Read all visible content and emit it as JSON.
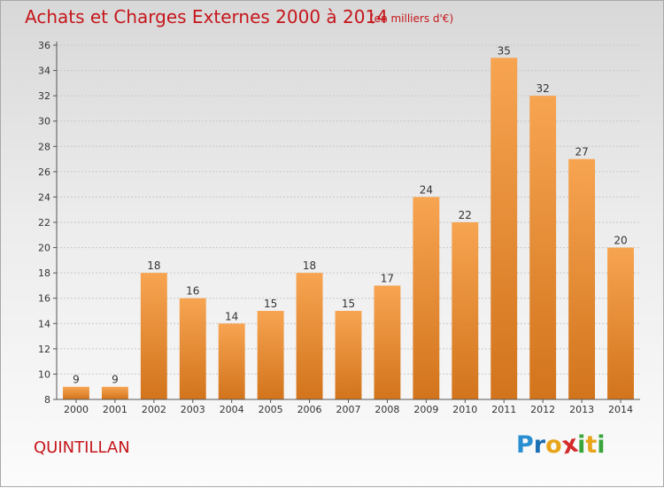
{
  "header": {
    "title": "Achats et Charges Externes 2000 à 2014",
    "unit": "(en milliers d'€)"
  },
  "footer": {
    "place": "QUINTILLAN",
    "logo_letters": [
      "P",
      "r",
      "o",
      "x",
      "i",
      "t",
      "i"
    ],
    "logo_colors": [
      "#2a8fd0",
      "#1d6fb4",
      "#e8a51b",
      "#d52a2a",
      "#3aa53a",
      "#e8a51b",
      "#3aa53a"
    ]
  },
  "colors": {
    "bar_top": "#f7a451",
    "bar_bottom": "#d2741c",
    "title": "#c5161b"
  },
  "chart_data": {
    "type": "bar",
    "categories": [
      "2000",
      "2001",
      "2002",
      "2003",
      "2004",
      "2005",
      "2006",
      "2007",
      "2008",
      "2009",
      "2010",
      "2011",
      "2012",
      "2013",
      "2014"
    ],
    "values": [
      9,
      9,
      18,
      16,
      14,
      15,
      18,
      15,
      17,
      24,
      22,
      35,
      32,
      27,
      20
    ],
    "ylim": [
      8,
      36
    ],
    "yticks": [
      8,
      10,
      12,
      14,
      16,
      18,
      20,
      22,
      24,
      26,
      28,
      30,
      32,
      34,
      36
    ],
    "grid": true,
    "data_labels": true
  }
}
